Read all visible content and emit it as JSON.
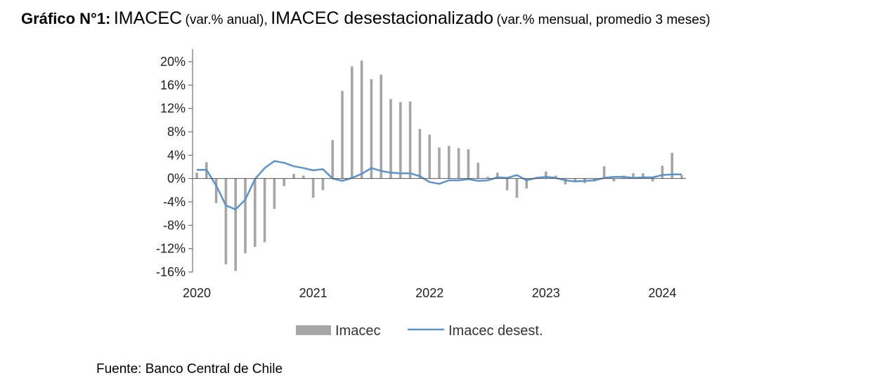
{
  "title": {
    "bold": "Gráfico N°1:",
    "part1": "IMACEC",
    "part1_note": "(var.% anual),",
    "part2": "IMACEC desestacionalizado",
    "part2_note": "(var.% mensual, promedio 3 meses)"
  },
  "source": "Fuente: Banco Central de Chile",
  "colors": {
    "bars": "#a6a6a6",
    "line": "#5b93cf",
    "axis": "#555555"
  },
  "chart_data": {
    "type": "bar+line",
    "categories": [
      "2020-01",
      "2020-02",
      "2020-03",
      "2020-04",
      "2020-05",
      "2020-06",
      "2020-07",
      "2020-08",
      "2020-09",
      "2020-10",
      "2020-11",
      "2020-12",
      "2021-01",
      "2021-02",
      "2021-03",
      "2021-04",
      "2021-05",
      "2021-06",
      "2021-07",
      "2021-08",
      "2021-09",
      "2021-10",
      "2021-11",
      "2021-12",
      "2022-01",
      "2022-02",
      "2022-03",
      "2022-04",
      "2022-05",
      "2022-06",
      "2022-07",
      "2022-08",
      "2022-09",
      "2022-10",
      "2022-11",
      "2022-12",
      "2023-01",
      "2023-02",
      "2023-03",
      "2023-04",
      "2023-05",
      "2023-06",
      "2023-07",
      "2023-08",
      "2023-09",
      "2023-10",
      "2023-11",
      "2023-12",
      "2024-01",
      "2024-02",
      "2024-03"
    ],
    "x_tick_labels": [
      "2020",
      "2021",
      "2022",
      "2023",
      "2024"
    ],
    "y_tick_values": [
      20,
      16,
      12,
      8,
      4,
      0,
      -4,
      -8,
      -12,
      -16
    ],
    "y_tick_labels": [
      "20%",
      "16%",
      "12%",
      "8%",
      "4%",
      "0%",
      "-4%",
      "-8%",
      "-12%",
      "-16%"
    ],
    "ylim": [
      -16,
      20
    ],
    "series": [
      {
        "name": "Imacec",
        "type": "bar",
        "values": [
          1.0,
          2.8,
          -4.2,
          -14.7,
          -15.8,
          -12.8,
          -11.7,
          -10.9,
          -5.2,
          -1.3,
          0.8,
          0.5,
          -3.3,
          -2.0,
          6.6,
          15.0,
          19.2,
          20.2,
          17.0,
          17.8,
          13.6,
          13.1,
          13.2,
          8.5,
          7.5,
          5.3,
          5.6,
          5.2,
          5.0,
          2.7,
          0.3,
          1.0,
          -2.0,
          -3.3,
          -1.7,
          0.0,
          1.2,
          0.5,
          -1.0,
          -0.5,
          -0.8,
          -0.5,
          2.1,
          -0.5,
          0.5,
          0.9,
          0.9,
          -0.5,
          2.2,
          4.4,
          0.6
        ]
      },
      {
        "name": "Imacec desest.",
        "type": "line",
        "values": [
          1.5,
          1.5,
          -1.2,
          -4.6,
          -5.3,
          -3.6,
          -0.1,
          1.8,
          3.0,
          2.7,
          2.1,
          1.8,
          1.4,
          1.6,
          0.0,
          -0.4,
          0.1,
          0.8,
          1.8,
          1.3,
          1.0,
          0.9,
          0.9,
          0.4,
          -0.6,
          -0.9,
          -0.3,
          -0.3,
          -0.1,
          -0.4,
          -0.3,
          0.2,
          0.1,
          0.6,
          -0.3,
          0.1,
          0.3,
          0.1,
          -0.3,
          -0.5,
          -0.4,
          -0.3,
          0.1,
          0.3,
          0.3,
          0.1,
          0.2,
          0.2,
          0.6,
          0.7,
          0.7
        ]
      }
    ]
  }
}
